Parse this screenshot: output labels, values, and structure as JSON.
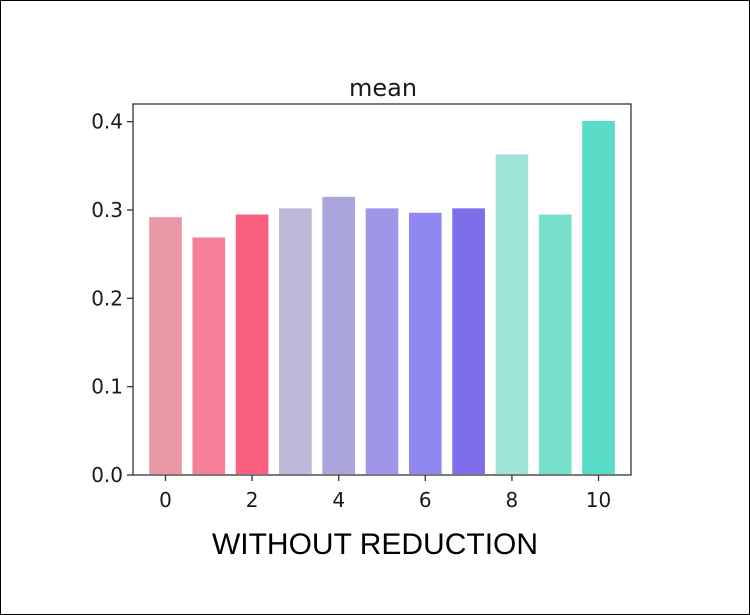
{
  "chart_data": {
    "type": "bar",
    "title": "mean",
    "categories": [
      0,
      1,
      2,
      3,
      4,
      5,
      6,
      7,
      8,
      9,
      10
    ],
    "values": [
      0.293,
      0.27,
      0.296,
      0.303,
      0.316,
      0.303,
      0.298,
      0.303,
      0.364,
      0.296,
      0.402
    ],
    "colors": [
      "#eb98a6",
      "#f57f98",
      "#f96080",
      "#bbb8d8",
      "#aba5de",
      "#9f96e9",
      "#9187f1",
      "#7e6eeb",
      "#a0e3d8",
      "#77e0cc",
      "#58dcc6"
    ],
    "xticks": [
      "0",
      "2",
      "4",
      "6",
      "8",
      "10"
    ],
    "yticks": [
      "0.0",
      "0.1",
      "0.2",
      "0.3",
      "0.4"
    ],
    "xlim": [
      -0.75,
      10.75
    ],
    "ylim": [
      0,
      0.42
    ],
    "grid": false,
    "xlabel": "",
    "ylabel": ""
  },
  "caption": "WITHOUT REDUCTION"
}
